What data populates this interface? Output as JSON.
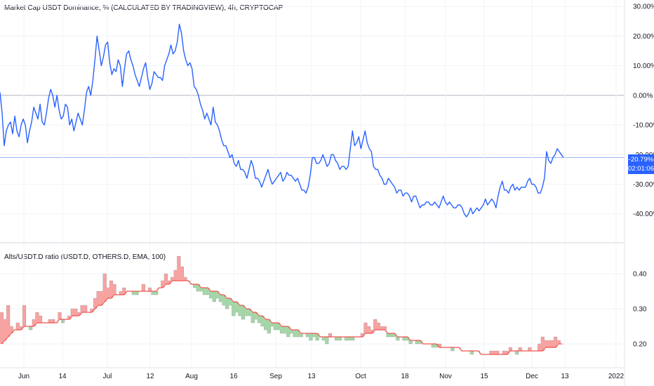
{
  "main_title": "Market Cap USDT Dominance, % (CALCULATED BY TRADINGVIEW), 4h, CRYPTOCAP",
  "sub_title": "Alts/USDT.D ratio (USDT.D, OTHERS.D, EMA, 100)",
  "last_price": "-20.79%",
  "countdown": "02:01:06",
  "colors": {
    "main_line": "#2962ff",
    "ema_line": "#ef5350",
    "fill_above": "#f7a3a1",
    "fill_below": "#a5d6a7",
    "grid": "#f0f3fa",
    "zero_line": "#b2b5be"
  },
  "chart_data": [
    {
      "type": "line",
      "title": "Market Cap USDT Dominance, % (CALCULATED BY TRADINGVIEW), 4h, CRYPTOCAP",
      "ylim": [
        -46,
        31
      ],
      "y_ticks": [
        "30.00%",
        "20.00%",
        "10.00%",
        "0.00%",
        "-10.00%",
        "-20.00%",
        "-30.00%",
        "-40.00%"
      ],
      "y_tick_values": [
        30,
        20,
        10,
        0,
        -10,
        -20,
        -30,
        -40
      ],
      "x_ticks": [
        "Jun",
        "14",
        "Jul",
        "12",
        "Aug",
        "16",
        "Sep",
        "13",
        "Oct",
        "18",
        "Nov",
        "15",
        "Dec",
        "13",
        "2022"
      ],
      "series": [
        {
          "values": [
            1.0,
            -6.0,
            -17.0,
            -12.0,
            -10.0,
            -9.0,
            -13.0,
            -7.0,
            -12.0,
            -14.0,
            -10.0,
            -8.0,
            -10.0,
            -16.0,
            -12.0,
            -9.0,
            -4.0,
            -6.0,
            -8.0,
            -3.0,
            -9.0,
            -10.0,
            -6.0,
            -1.0,
            2.0,
            0.0,
            -4.0,
            0.0,
            -5.0,
            -8.0,
            -7.0,
            -3.0,
            -4.0,
            -10.0,
            -8.0,
            -12.0,
            -9.0,
            -6.0,
            -8.0,
            -10.0,
            -5.0,
            1.0,
            3.0,
            0.0,
            5.0,
            12.0,
            20.0,
            15.0,
            10.0,
            13.0,
            17.0,
            18.0,
            11.0,
            7.0,
            9.0,
            8.0,
            12.0,
            10.0,
            3.0,
            9.0,
            14.0,
            15.0,
            12.0,
            10.0,
            7.0,
            5.0,
            3.0,
            6.0,
            9.0,
            11.0,
            6.0,
            2.0,
            4.0,
            8.0,
            7.0,
            6.0,
            6.0,
            5.0,
            10.0,
            12.0,
            14.0,
            17.0,
            14.0,
            15.0,
            18.0,
            24.0,
            21.0,
            15.0,
            12.0,
            10.0,
            11.0,
            9.0,
            3.0,
            2.0,
            0.0,
            -3.0,
            -5.0,
            -8.0,
            -6.0,
            -8.0,
            -10.0,
            -4.0,
            -9.0,
            -10.0,
            -12.0,
            -15.0,
            -17.0,
            -17.0,
            -19.0,
            -21.0,
            -20.0,
            -23.0,
            -24.0,
            -22.0,
            -25.0,
            -25.0,
            -26.0,
            -28.0,
            -25.0,
            -22.0,
            -24.0,
            -28.0,
            -28.0,
            -29.0,
            -31.0,
            -29.0,
            -27.0,
            -25.0,
            -28.0,
            -30.0,
            -29.0,
            -28.0,
            -27.0,
            -26.0,
            -29.0,
            -28.0,
            -26.0,
            -27.0,
            -27.0,
            -28.0,
            -29.0,
            -28.0,
            -30.0,
            -32.0,
            -32.0,
            -33.0,
            -31.0,
            -27.0,
            -21.0,
            -21.0,
            -23.0,
            -23.0,
            -22.0,
            -20.0,
            -22.0,
            -24.0,
            -23.0,
            -20.0,
            -20.0,
            -22.0,
            -23.0,
            -25.0,
            -24.0,
            -24.0,
            -25.0,
            -24.0,
            -18.0,
            -12.0,
            -17.0,
            -16.0,
            -14.0,
            -18.0,
            -15.0,
            -12.0,
            -16.0,
            -18.0,
            -19.0,
            -24.0,
            -25.0,
            -25.0,
            -27.0,
            -28.0,
            -30.0,
            -30.0,
            -28.0,
            -29.0,
            -30.0,
            -31.0,
            -33.0,
            -32.0,
            -32.0,
            -34.0,
            -33.0,
            -33.0,
            -34.0,
            -36.0,
            -34.0,
            -34.0,
            -36.0,
            -38.0,
            -37.0,
            -37.0,
            -36.0,
            -36.0,
            -37.0,
            -37.0,
            -36.0,
            -37.0,
            -38.0,
            -36.0,
            -34.0,
            -36.0,
            -37.0,
            -36.0,
            -37.0,
            -38.0,
            -38.0,
            -37.0,
            -37.0,
            -38.0,
            -40.0,
            -41.0,
            -40.0,
            -38.0,
            -40.0,
            -39.0,
            -38.0,
            -39.0,
            -38.0,
            -37.0,
            -35.0,
            -37.0,
            -36.0,
            -35.0,
            -36.0,
            -38.0,
            -34.0,
            -31.0,
            -29.0,
            -32.0,
            -32.0,
            -33.0,
            -31.0,
            -30.0,
            -32.0,
            -31.0,
            -32.0,
            -31.0,
            -31.0,
            -31.0,
            -29.0,
            -28.0,
            -30.0,
            -30.0,
            -31.0,
            -33.0,
            -33.0,
            -31.0,
            -28.0,
            -19.0,
            -22.0,
            -23.0,
            -21.0,
            -20.0,
            -18.0,
            -19.0,
            -20.0,
            -21.0
          ]
        }
      ]
    },
    {
      "type": "area",
      "title": "Alts/USDT.D ratio (USDT.D, OTHERS.D, EMA, 100)",
      "ylim": [
        0.14,
        0.48
      ],
      "y_ticks": [
        "0.40",
        "0.30",
        "0.20"
      ],
      "y_tick_values": [
        0.4,
        0.3,
        0.2
      ],
      "series": [
        {
          "name": "ratio",
          "values": [
            0.29,
            0.27,
            0.31,
            0.25,
            0.24,
            0.26,
            0.25,
            0.31,
            0.25,
            0.24,
            0.27,
            0.29,
            0.28,
            0.26,
            0.26,
            0.27,
            0.27,
            0.26,
            0.29,
            0.26,
            0.27,
            0.28,
            0.3,
            0.3,
            0.29,
            0.31,
            0.31,
            0.29,
            0.3,
            0.33,
            0.35,
            0.35,
            0.4,
            0.36,
            0.38,
            0.37,
            0.34,
            0.35,
            0.36,
            0.35,
            0.35,
            0.34,
            0.34,
            0.35,
            0.37,
            0.35,
            0.36,
            0.34,
            0.34,
            0.36,
            0.38,
            0.4,
            0.38,
            0.39,
            0.41,
            0.45,
            0.42,
            0.39,
            0.38,
            0.37,
            0.36,
            0.35,
            0.35,
            0.34,
            0.34,
            0.33,
            0.32,
            0.33,
            0.32,
            0.31,
            0.3,
            0.31,
            0.28,
            0.29,
            0.28,
            0.27,
            0.28,
            0.28,
            0.26,
            0.27,
            0.26,
            0.25,
            0.24,
            0.23,
            0.25,
            0.24,
            0.24,
            0.23,
            0.23,
            0.22,
            0.23,
            0.22,
            0.22,
            0.22,
            0.23,
            0.22,
            0.21,
            0.22,
            0.21,
            0.22,
            0.21,
            0.2,
            0.23,
            0.22,
            0.21,
            0.21,
            0.22,
            0.21,
            0.21,
            0.21,
            0.22,
            0.22,
            0.23,
            0.26,
            0.25,
            0.24,
            0.27,
            0.26,
            0.25,
            0.25,
            0.22,
            0.22,
            0.22,
            0.21,
            0.22,
            0.21,
            0.21,
            0.2,
            0.21,
            0.2,
            0.2,
            0.2,
            0.2,
            0.2,
            0.19,
            0.19,
            0.2,
            0.19,
            0.19,
            0.19,
            0.18,
            0.19,
            0.19,
            0.18,
            0.18,
            0.18,
            0.17,
            0.18,
            0.18,
            0.17,
            0.17,
            0.17,
            0.18,
            0.18,
            0.18,
            0.17,
            0.18,
            0.18,
            0.19,
            0.18,
            0.17,
            0.19,
            0.18,
            0.18,
            0.19,
            0.18,
            0.18,
            0.2,
            0.22,
            0.21,
            0.21,
            0.21,
            0.22,
            0.21,
            0.2
          ]
        },
        {
          "name": "EMA",
          "values": [
            0.2,
            0.21,
            0.22,
            0.23,
            0.24,
            0.24,
            0.24,
            0.25,
            0.25,
            0.25,
            0.25,
            0.26,
            0.26,
            0.26,
            0.26,
            0.26,
            0.26,
            0.26,
            0.27,
            0.27,
            0.27,
            0.27,
            0.28,
            0.28,
            0.28,
            0.29,
            0.29,
            0.29,
            0.29,
            0.3,
            0.31,
            0.31,
            0.32,
            0.33,
            0.33,
            0.34,
            0.34,
            0.34,
            0.34,
            0.35,
            0.35,
            0.35,
            0.35,
            0.35,
            0.35,
            0.35,
            0.35,
            0.35,
            0.35,
            0.36,
            0.36,
            0.37,
            0.37,
            0.38,
            0.38,
            0.38,
            0.38,
            0.38,
            0.38,
            0.37,
            0.37,
            0.37,
            0.36,
            0.36,
            0.36,
            0.35,
            0.35,
            0.35,
            0.34,
            0.34,
            0.33,
            0.33,
            0.32,
            0.32,
            0.31,
            0.31,
            0.3,
            0.3,
            0.29,
            0.29,
            0.28,
            0.28,
            0.27,
            0.27,
            0.26,
            0.26,
            0.26,
            0.25,
            0.25,
            0.25,
            0.24,
            0.24,
            0.24,
            0.23,
            0.23,
            0.23,
            0.23,
            0.23,
            0.23,
            0.22,
            0.22,
            0.22,
            0.22,
            0.22,
            0.22,
            0.22,
            0.22,
            0.22,
            0.22,
            0.22,
            0.22,
            0.22,
            0.22,
            0.23,
            0.23,
            0.23,
            0.24,
            0.24,
            0.24,
            0.24,
            0.23,
            0.23,
            0.23,
            0.22,
            0.22,
            0.22,
            0.22,
            0.21,
            0.21,
            0.21,
            0.21,
            0.2,
            0.2,
            0.2,
            0.2,
            0.2,
            0.19,
            0.19,
            0.19,
            0.19,
            0.19,
            0.19,
            0.19,
            0.18,
            0.18,
            0.18,
            0.18,
            0.18,
            0.18,
            0.17,
            0.17,
            0.17,
            0.17,
            0.17,
            0.17,
            0.17,
            0.17,
            0.17,
            0.18,
            0.18,
            0.18,
            0.18,
            0.18,
            0.18,
            0.18,
            0.18,
            0.18,
            0.18,
            0.18,
            0.19,
            0.19,
            0.19,
            0.19,
            0.2,
            0.2,
            0.2
          ]
        }
      ]
    }
  ]
}
